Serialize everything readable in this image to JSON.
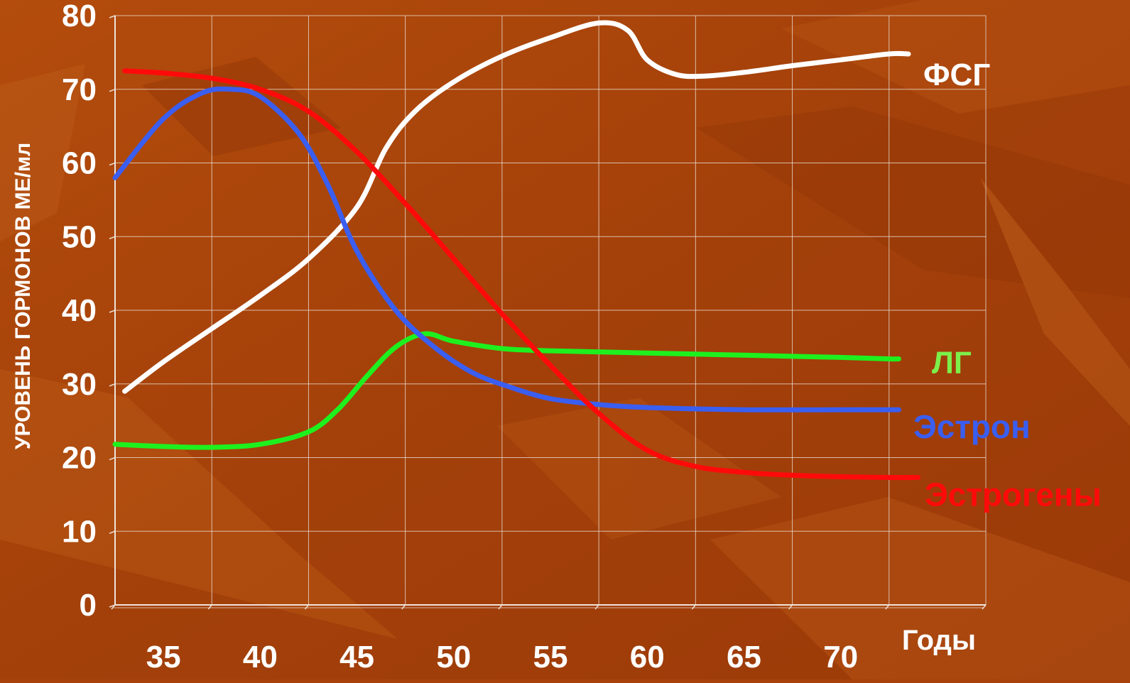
{
  "chart_data": {
    "type": "line",
    "title": "",
    "xlabel": "Годы",
    "ylabel": "УРОВЕНЬ ГОРМОНОВ МЕ/мл",
    "xlim": [
      32.5,
      77.5
    ],
    "ylim": [
      0,
      80
    ],
    "x_ticks": [
      "35",
      "40",
      "45",
      "50",
      "55",
      "60",
      "65",
      "70"
    ],
    "y_ticks": [
      "0",
      "10",
      "20",
      "30",
      "40",
      "50",
      "60",
      "70",
      "80"
    ],
    "grid": true,
    "series": [
      {
        "name": "ФСГ",
        "color": "#ffffff",
        "label_color": "#ffffff",
        "x": [
          33,
          35,
          37.5,
          40,
          42.5,
          45,
          46.5,
          48,
          50,
          52.5,
          55,
          57.5,
          59,
          60,
          61.5,
          63,
          65,
          67.5,
          70,
          72.5,
          73.5
        ],
        "y": [
          29,
          33,
          37.5,
          42,
          47,
          54,
          62,
          67,
          71,
          74.5,
          77,
          79,
          78,
          74,
          72,
          71.8,
          72.3,
          73.2,
          74,
          74.8,
          74.8
        ]
      },
      {
        "name": "ЛГ",
        "color": "#1ef01e",
        "label_color": "#7cf04a",
        "x": [
          32.5,
          35,
          37.5,
          40,
          42.5,
          44,
          45.5,
          47,
          48.5,
          50,
          52.5,
          55,
          60,
          65,
          70,
          72.5,
          73
        ],
        "y": [
          21.8,
          21.5,
          21.4,
          21.8,
          23.5,
          26.5,
          31,
          35,
          36.8,
          35.8,
          34.8,
          34.5,
          34.2,
          33.9,
          33.6,
          33.4,
          33.4
        ]
      },
      {
        "name": "Эстрон",
        "color": "#3a5ef0",
        "label_color": "#3a5ef0",
        "x": [
          32.5,
          35,
          37,
          38.5,
          40,
          42,
          43.5,
          45,
          47,
          49,
          51,
          53,
          55,
          57.5,
          60,
          65,
          70,
          73
        ],
        "y": [
          58,
          66,
          69.5,
          70,
          69,
          64,
          57,
          48,
          40,
          35,
          31.5,
          29.5,
          28,
          27.2,
          26.8,
          26.5,
          26.5,
          26.5
        ]
      },
      {
        "name": "Эстрогены",
        "color": "#ff0a0a",
        "label_color": "#ff0a0a",
        "x": [
          33,
          35,
          37.5,
          40,
          42.5,
          45,
          47.5,
          50,
          52.5,
          55,
          57.5,
          60,
          62.5,
          65,
          67.5,
          70,
          72.5,
          74
        ],
        "y": [
          72.5,
          72.2,
          71.5,
          70,
          67,
          61.5,
          54.5,
          47,
          39.5,
          32.5,
          26,
          21,
          18.8,
          18,
          17.6,
          17.4,
          17.3,
          17.3
        ]
      }
    ]
  }
}
